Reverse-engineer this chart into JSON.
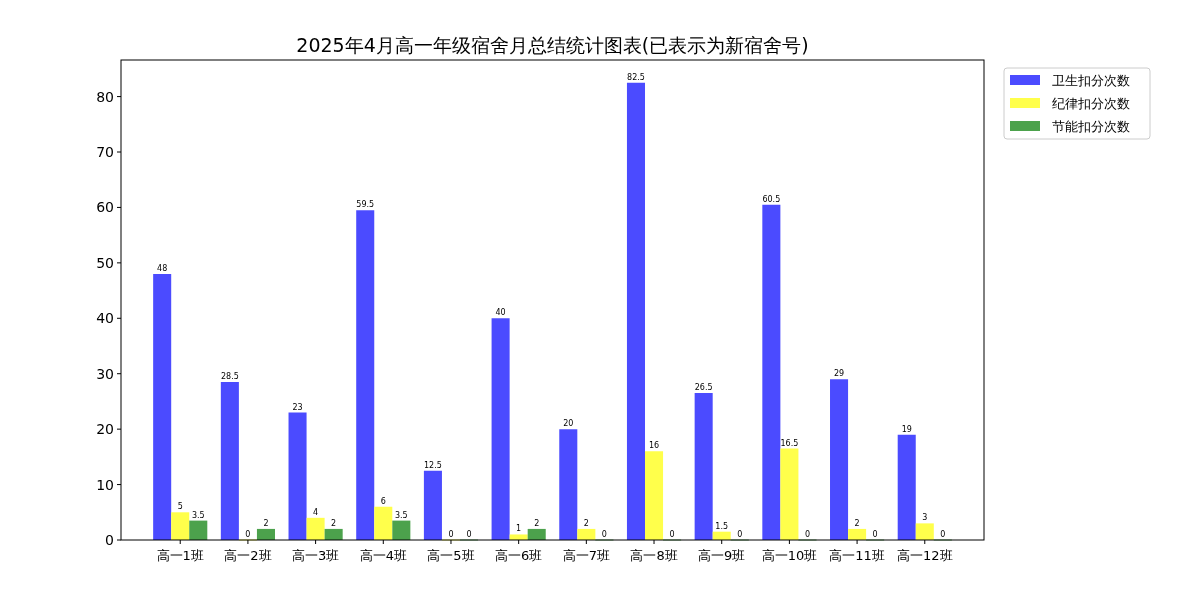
{
  "chart_data": {
    "type": "bar",
    "title": "2025年4月高一年级宿舍月总结统计图表(已表示为新宿舍号)",
    "categories": [
      "高一1班",
      "高一2班",
      "高一3班",
      "高一4班",
      "高一5班",
      "高一6班",
      "高一7班",
      "高一8班",
      "高一9班",
      "高一10班",
      "高一11班",
      "高一12班"
    ],
    "series": [
      {
        "name": "卫生扣分次数",
        "color": "#4b4bff",
        "values": [
          48,
          28.5,
          23,
          59.5,
          12.5,
          40,
          20,
          82.5,
          26.5,
          60.5,
          29,
          19
        ]
      },
      {
        "name": "纪律扣分次数",
        "color": "#ffff4b",
        "values": [
          5,
          0,
          4,
          6,
          0,
          1,
          2,
          16,
          1.5,
          16.5,
          2,
          3
        ]
      },
      {
        "name": "节能扣分次数",
        "color": "#4ca24c",
        "values": [
          3.5,
          2,
          2,
          3.5,
          0,
          2,
          0,
          0,
          0,
          0,
          0,
          0
        ]
      }
    ],
    "ylim": [
      0,
      86.6
    ],
    "yticks": [
      0,
      10,
      20,
      30,
      40,
      50,
      60,
      70,
      80
    ],
    "data_labels": true,
    "legend": "top right",
    "grid": false
  }
}
